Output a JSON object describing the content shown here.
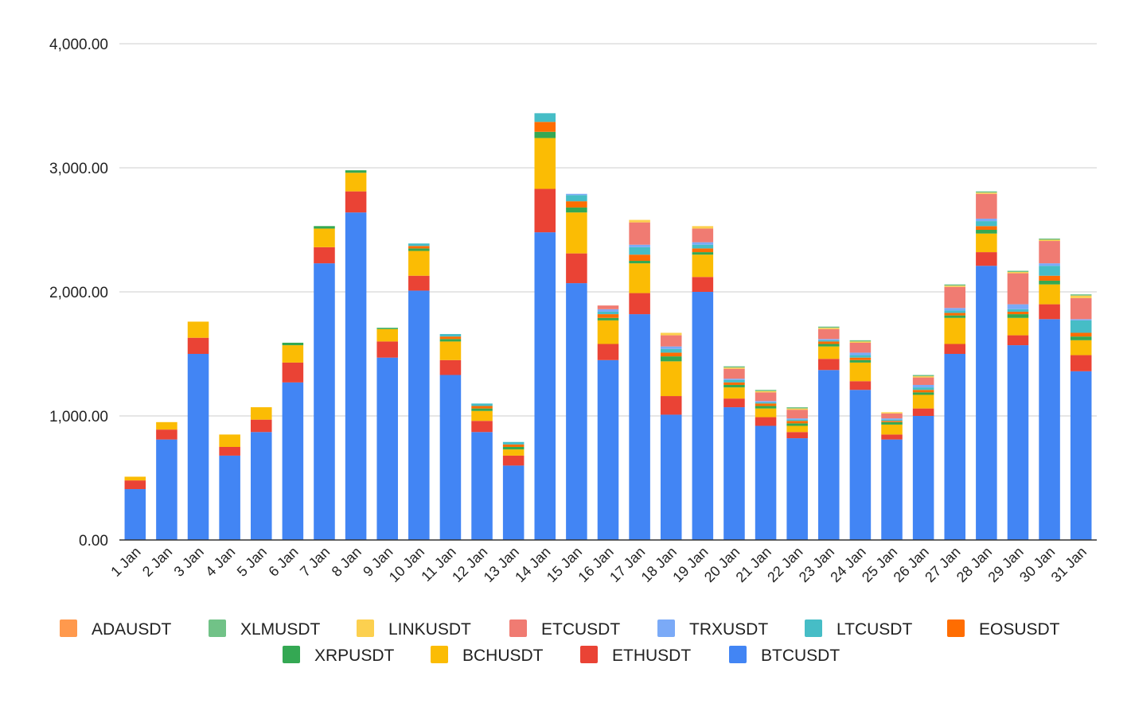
{
  "chart_data": {
    "type": "bar",
    "stacked": true,
    "title": "",
    "xlabel": "",
    "ylabel": "",
    "ylim": [
      0,
      4000
    ],
    "yticks": [
      "0.00",
      "1,000.00",
      "2,000.00",
      "3,000.00",
      "4,000.00"
    ],
    "ytick_values": [
      0,
      1000,
      2000,
      3000,
      4000
    ],
    "grid": true,
    "legend_position": "bottom",
    "categories": [
      "1 Jan",
      "2 Jan",
      "3 Jan",
      "4 Jan",
      "5 Jan",
      "6 Jan",
      "7 Jan",
      "8 Jan",
      "9 Jan",
      "10 Jan",
      "11 Jan",
      "12 Jan",
      "13 Jan",
      "14 Jan",
      "15 Jan",
      "16 Jan",
      "17 Jan",
      "18 Jan",
      "19 Jan",
      "20 Jan",
      "21 Jan",
      "22 Jan",
      "23 Jan",
      "24 Jan",
      "25 Jan",
      "26 Jan",
      "27 Jan",
      "28 Jan",
      "29 Jan",
      "30 Jan",
      "31 Jan"
    ],
    "series": [
      {
        "name": "BTCUSDT",
        "color": "#4285F4",
        "values": [
          410,
          810,
          1500,
          680,
          870,
          1270,
          2230,
          2640,
          1470,
          2010,
          1330,
          870,
          600,
          2480,
          2070,
          1450,
          1820,
          1010,
          2000,
          1070,
          920,
          820,
          1370,
          1210,
          810,
          1000,
          1500,
          2210,
          1570,
          1780,
          1360
        ]
      },
      {
        "name": "ETHUSDT",
        "color": "#EA4335",
        "values": [
          70,
          80,
          130,
          70,
          100,
          160,
          130,
          170,
          130,
          120,
          120,
          90,
          80,
          350,
          240,
          130,
          170,
          150,
          120,
          70,
          70,
          50,
          90,
          70,
          40,
          60,
          80,
          110,
          80,
          120,
          130
        ]
      },
      {
        "name": "BCHUSDT",
        "color": "#FBBC04",
        "values": [
          30,
          60,
          130,
          100,
          100,
          140,
          150,
          150,
          100,
          200,
          150,
          80,
          50,
          410,
          330,
          190,
          240,
          280,
          180,
          90,
          70,
          50,
          100,
          150,
          80,
          110,
          210,
          150,
          140,
          160,
          120
        ]
      },
      {
        "name": "XRPUSDT",
        "color": "#34A853",
        "values": [
          0,
          0,
          0,
          0,
          0,
          20,
          20,
          20,
          10,
          20,
          20,
          20,
          20,
          50,
          40,
          20,
          20,
          40,
          20,
          20,
          20,
          20,
          20,
          20,
          20,
          20,
          20,
          30,
          30,
          30,
          30
        ]
      },
      {
        "name": "EOSUSDT",
        "color": "#FF6D01",
        "values": [
          0,
          0,
          0,
          0,
          0,
          0,
          0,
          0,
          0,
          20,
          20,
          20,
          20,
          80,
          50,
          30,
          50,
          30,
          30,
          20,
          20,
          20,
          20,
          20,
          10,
          20,
          20,
          30,
          20,
          40,
          30
        ]
      },
      {
        "name": "LTCUSDT",
        "color": "#46BDC6",
        "values": [
          0,
          0,
          0,
          0,
          0,
          0,
          0,
          0,
          0,
          20,
          20,
          20,
          20,
          70,
          50,
          20,
          60,
          30,
          30,
          20,
          10,
          10,
          10,
          20,
          10,
          20,
          20,
          40,
          20,
          80,
          100
        ]
      },
      {
        "name": "TRXUSDT",
        "color": "#7BAAF7",
        "values": [
          0,
          0,
          0,
          0,
          0,
          0,
          0,
          0,
          0,
          0,
          0,
          0,
          0,
          0,
          10,
          20,
          20,
          20,
          20,
          10,
          10,
          10,
          10,
          20,
          10,
          20,
          20,
          20,
          40,
          20,
          10
        ]
      },
      {
        "name": "ETCUSDT",
        "color": "#F07B72",
        "values": [
          0,
          0,
          0,
          0,
          0,
          0,
          0,
          0,
          0,
          0,
          0,
          0,
          0,
          0,
          0,
          30,
          180,
          90,
          110,
          80,
          70,
          70,
          80,
          80,
          40,
          60,
          170,
          200,
          250,
          180,
          170
        ]
      },
      {
        "name": "LINKUSDT",
        "color": "#FCD04F",
        "values": [
          0,
          0,
          0,
          0,
          0,
          0,
          0,
          0,
          0,
          0,
          0,
          0,
          0,
          0,
          0,
          0,
          20,
          20,
          20,
          10,
          10,
          10,
          10,
          10,
          10,
          10,
          10,
          10,
          10,
          10,
          20
        ]
      },
      {
        "name": "XLMUSDT",
        "color": "#71C287",
        "values": [
          0,
          0,
          0,
          0,
          0,
          0,
          0,
          0,
          0,
          0,
          0,
          0,
          0,
          0,
          0,
          0,
          0,
          0,
          0,
          10,
          10,
          10,
          10,
          10,
          0,
          10,
          10,
          10,
          10,
          10,
          10
        ]
      },
      {
        "name": "ADAUSDT",
        "color": "#FF994D",
        "values": [
          0,
          0,
          0,
          0,
          0,
          0,
          0,
          0,
          0,
          0,
          0,
          0,
          0,
          0,
          0,
          0,
          0,
          0,
          0,
          0,
          0,
          0,
          0,
          0,
          0,
          0,
          0,
          0,
          0,
          0,
          0
        ]
      }
    ],
    "legend_order": [
      "ADAUSDT",
      "XLMUSDT",
      "LINKUSDT",
      "ETCUSDT",
      "TRXUSDT",
      "LTCUSDT",
      "EOSUSDT",
      "XRPUSDT",
      "BCHUSDT",
      "ETHUSDT",
      "BTCUSDT"
    ]
  }
}
